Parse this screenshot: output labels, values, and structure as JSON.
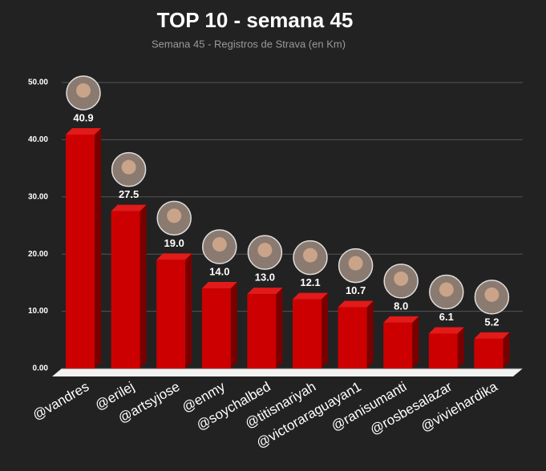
{
  "chart_data": {
    "type": "bar3d",
    "title": "TOP 10 - semana 45",
    "subtitle": "Semana 45 - Registros de Strava (en Km)",
    "categories": [
      "@vandres",
      "@erilej",
      "@artsyjose",
      "@enmy",
      "@soychalbed",
      "@titisnariyah",
      "@victoraraguayan1",
      "@ranisumanti",
      "@rosbesalazar",
      "@viviehardika"
    ],
    "values": [
      40.9,
      27.5,
      19.0,
      14.0,
      13.0,
      12.1,
      10.7,
      8.0,
      6.1,
      5.2
    ],
    "value_labels": [
      "40.9",
      "27.5",
      "19.0",
      "14.0",
      "13.0",
      "12.1",
      "10.7",
      "8.0",
      "6.1",
      "5.2"
    ],
    "color": "#cc0000",
    "ylim": [
      0,
      50
    ],
    "yticks": [
      {
        "value": 0,
        "label": "0.00"
      },
      {
        "value": 10,
        "label": "10.00"
      },
      {
        "value": 20,
        "label": "20.00"
      },
      {
        "value": 30,
        "label": "30.00"
      },
      {
        "value": 40,
        "label": "40.00"
      },
      {
        "value": 50,
        "label": "50.00"
      }
    ],
    "grid": true
  }
}
